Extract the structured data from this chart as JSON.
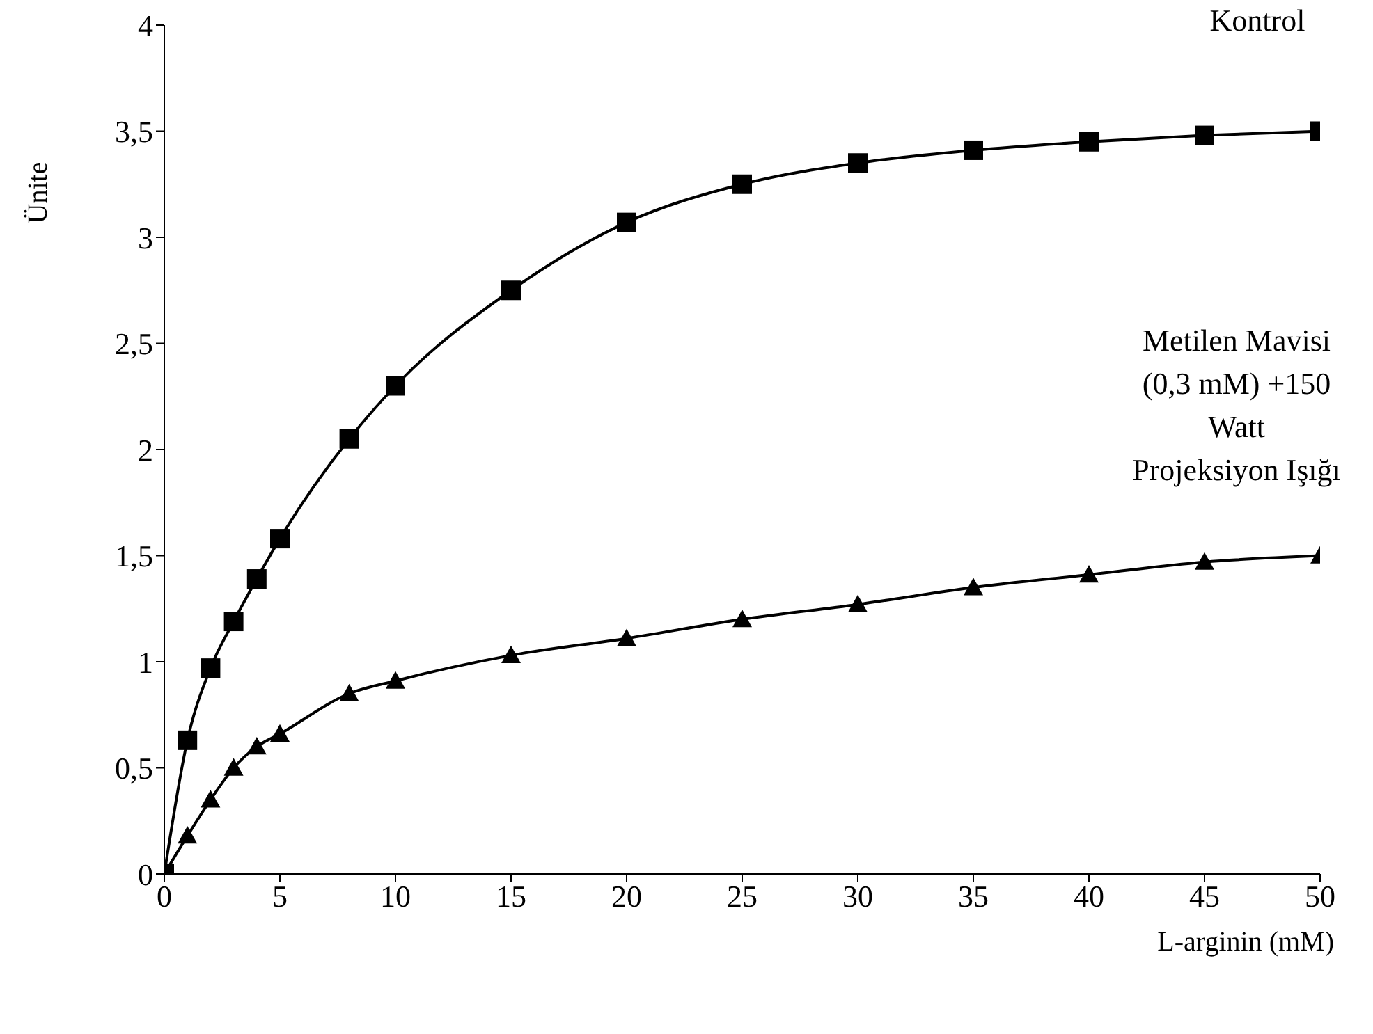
{
  "chart_data": {
    "type": "line",
    "xlabel": "L-arginin (mM)",
    "ylabel": "Ünite",
    "xlim": [
      0,
      50
    ],
    "xticks": [
      0,
      5,
      10,
      15,
      20,
      25,
      30,
      35,
      40,
      45,
      50
    ],
    "ylim": [
      0,
      4
    ],
    "yticks": [
      0,
      {
        "value": 0.5,
        "label": "0,5"
      },
      1,
      {
        "value": 1.5,
        "label": "1,5"
      },
      2,
      {
        "value": 2.5,
        "label": "2,5"
      },
      3,
      {
        "value": 3.5,
        "label": "3,5"
      },
      4
    ],
    "grid": false,
    "legend": false,
    "line_style": "solid",
    "x": [
      0,
      1,
      2,
      3,
      4,
      5,
      8,
      10,
      15,
      20,
      25,
      30,
      35,
      40,
      45,
      50
    ],
    "series": [
      {
        "name": "Kontrol",
        "color": "#000000",
        "marker": "square",
        "values": [
          0,
          0.63,
          0.97,
          1.19,
          1.39,
          1.58,
          2.05,
          2.3,
          2.75,
          3.07,
          3.25,
          3.35,
          3.41,
          3.45,
          3.48,
          3.5
        ]
      },
      {
        "name": "Metilen Mavisi (0,3 mM) +150 Watt Projeksiyon Işığı",
        "color": "#000000",
        "marker": "triangle",
        "values": [
          0,
          0.18,
          0.35,
          0.5,
          0.6,
          0.66,
          0.85,
          0.91,
          1.03,
          1.11,
          1.2,
          1.27,
          1.35,
          1.41,
          1.47,
          1.5
        ]
      }
    ]
  }
}
